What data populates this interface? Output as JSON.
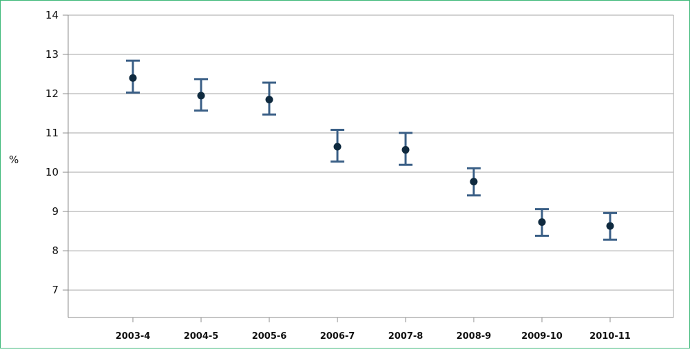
{
  "chart_data": {
    "type": "scatter",
    "title": "",
    "xlabel": "",
    "ylabel": "%",
    "ylim": [
      6.3,
      14
    ],
    "yticks": [
      7,
      8,
      9,
      10,
      11,
      12,
      13,
      14
    ],
    "grid": true,
    "legend": "none",
    "categories": [
      "2003-4",
      "2004-5",
      "2005-6",
      "2006-7",
      "2007-8",
      "2008-9",
      "2009-10",
      "2010-11"
    ],
    "series": [
      {
        "values": [
          12.4,
          11.95,
          11.85,
          10.65,
          10.57,
          9.76,
          8.73,
          8.63
        ],
        "lower": [
          12.03,
          11.57,
          11.47,
          10.27,
          10.19,
          9.41,
          8.38,
          8.28
        ],
        "upper": [
          12.84,
          12.37,
          12.28,
          11.08,
          11.0,
          10.1,
          9.06,
          8.96
        ]
      }
    ],
    "colors": {
      "point": "#0f2a3f",
      "errorbar": "#3a5f86",
      "grid": "#a6a6a6",
      "axis": "#8c8c8c"
    }
  }
}
